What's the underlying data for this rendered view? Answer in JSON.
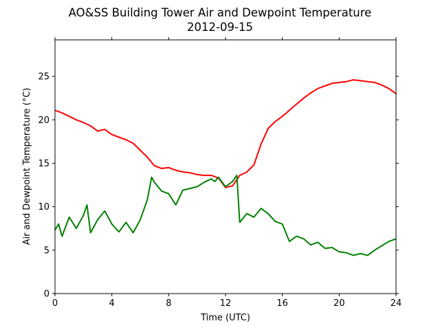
{
  "chart_data": {
    "type": "line",
    "title": "AO&SS Building Tower Air and Dewpoint Temperature",
    "subtitle": "2012-09-15",
    "xlabel": "Time (UTC)",
    "ylabel": "Air and Dewpoint Temperature (°C)",
    "xlim": [
      0,
      24
    ],
    "ylim": [
      0,
      29.2
    ],
    "xticks": [
      0,
      4,
      8,
      12,
      16,
      20,
      24
    ],
    "yticks": [
      0,
      5,
      10,
      15,
      20,
      25
    ],
    "grid": false,
    "series": [
      {
        "color": "#ff0000",
        "x": [
          0,
          0.5,
          1,
          1.5,
          2,
          2.5,
          3,
          3.5,
          4,
          4.5,
          5,
          5.5,
          6,
          6.5,
          7,
          7.5,
          8,
          8.5,
          9,
          9.5,
          10,
          10.5,
          11,
          11.5,
          12,
          12.5,
          13,
          13.5,
          14,
          14.5,
          15,
          15.5,
          16,
          16.5,
          17,
          17.5,
          18,
          18.5,
          19,
          19.5,
          20,
          20.5,
          21,
          21.5,
          22,
          22.5,
          23,
          23.5,
          24
        ],
        "values": [
          21.1,
          20.8,
          20.4,
          20.0,
          19.7,
          19.3,
          18.7,
          18.9,
          18.3,
          18.0,
          17.7,
          17.3,
          16.5,
          15.7,
          14.7,
          14.4,
          14.5,
          14.2,
          14.0,
          13.9,
          13.7,
          13.6,
          13.6,
          13.3,
          12.2,
          12.4,
          13.6,
          14.0,
          14.8,
          17.2,
          19.0,
          19.8,
          20.4,
          21.1,
          21.8,
          22.5,
          23.1,
          23.6,
          23.9,
          24.2,
          24.3,
          24.4,
          24.6,
          24.5,
          24.4,
          24.3,
          24.0,
          23.6,
          23.0
        ]
      },
      {
        "color": "#008000",
        "x": [
          0,
          0.25,
          0.5,
          1,
          1.5,
          2,
          2.25,
          2.5,
          3,
          3.5,
          4,
          4.5,
          5,
          5.5,
          6,
          6.5,
          6.8,
          7,
          7.5,
          8,
          8.5,
          9,
          9.5,
          10,
          10.5,
          11,
          11.25,
          11.5,
          12,
          12.5,
          12.8,
          13,
          13.5,
          14,
          14.5,
          15,
          15.5,
          16,
          16.5,
          17,
          17.5,
          18,
          18.5,
          19,
          19.5,
          20,
          20.5,
          21,
          21.5,
          22,
          22.5,
          23,
          23.5,
          24
        ],
        "values": [
          7.3,
          8.0,
          6.6,
          8.8,
          7.5,
          9.0,
          10.2,
          7.0,
          8.5,
          9.5,
          8.0,
          7.1,
          8.2,
          7.0,
          8.5,
          10.8,
          13.4,
          12.8,
          11.8,
          11.5,
          10.2,
          11.9,
          12.1,
          12.3,
          12.8,
          13.2,
          12.9,
          13.4,
          12.3,
          12.9,
          13.6,
          8.2,
          9.2,
          8.8,
          9.8,
          9.2,
          8.3,
          8.0,
          6.0,
          6.6,
          6.3,
          5.6,
          5.9,
          5.2,
          5.3,
          4.8,
          4.7,
          4.4,
          4.6,
          4.4,
          5.0,
          5.5,
          6.0,
          6.3
        ]
      }
    ]
  }
}
